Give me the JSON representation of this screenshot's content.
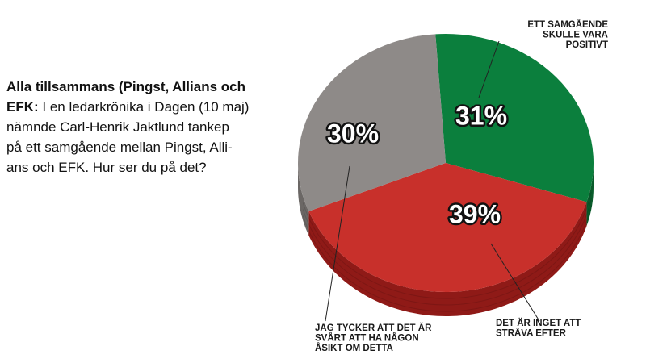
{
  "question": {
    "lead": "Alla tillsammans (Pingst, Allians och EFK:",
    "lines": [
      "Alla tillsammans (Pingst, Allians och",
      "EFK: I en ledarkrönika i Dagen (10 maj)",
      "nämnde Carl-Henrik Jaktlund tankep",
      "på ett samgående mellan Pingst, Alli-",
      "ans och EFK. Hur ser du  på det?"
    ]
  },
  "chart_data": {
    "type": "pie",
    "slices": [
      {
        "label": [
          "ETT SAMGÅENDE",
          "SKULLE VARA",
          "POSITIVT"
        ],
        "value": 31,
        "value_label": "31%",
        "color": "#0b7f3d",
        "side": "#0a5c2b"
      },
      {
        "label": [
          "DET ÄR INGET ATT",
          "STRÄVA EFTER"
        ],
        "value": 39,
        "value_label": "39%",
        "color": "#c8302b",
        "side": "#8f1a17"
      },
      {
        "label": [
          "JAG TYCKER  ATT DET ÄR",
          "SVÅRT ATT HA NÅGON",
          "ÅSIKT OM DETTA"
        ],
        "value": 30,
        "value_label": "30%",
        "color": "#8e8a88",
        "side": "#6b6765"
      }
    ]
  }
}
